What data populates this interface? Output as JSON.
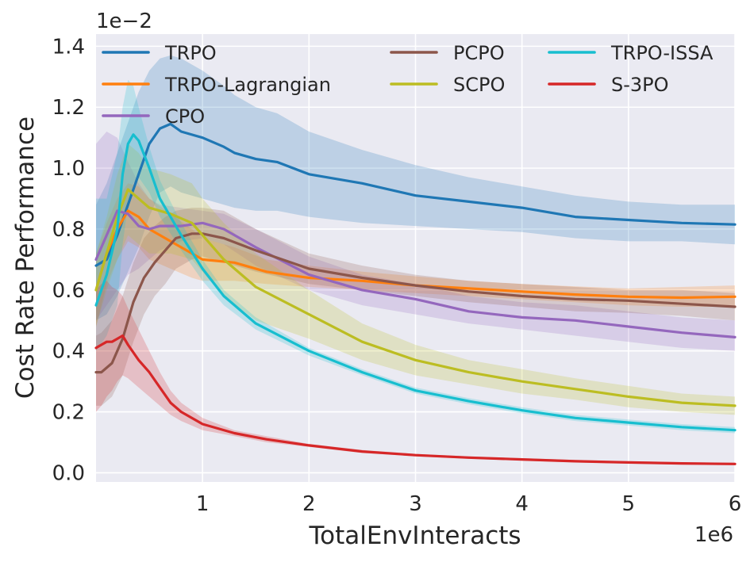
{
  "chart_data": {
    "type": "line",
    "xlabel": "TotalEnvInteracts",
    "ylabel": "Cost Rate Performance",
    "x_offset_text": "1e6",
    "y_offset_text": "1e−2",
    "xlim": [
      0.0,
      6.0
    ],
    "ylim": [
      -0.03,
      1.44
    ],
    "xticks": [
      1,
      2,
      3,
      4,
      5,
      6
    ],
    "xtick_labels": [
      "1",
      "2",
      "3",
      "4",
      "5",
      "6"
    ],
    "yticks": [
      0.0,
      0.2,
      0.4,
      0.6,
      0.8,
      1.0,
      1.2,
      1.4
    ],
    "ytick_labels": [
      "0.0",
      "0.2",
      "0.4",
      "0.6",
      "0.8",
      "1.0",
      "1.2",
      "1.4"
    ],
    "grid": true,
    "legend_position": "top",
    "series": [
      {
        "name": "TRPO",
        "color": "#1f77b4",
        "x": [
          0.0,
          0.1,
          0.2,
          0.3,
          0.4,
          0.5,
          0.6,
          0.7,
          0.8,
          1.0,
          1.2,
          1.3,
          1.5,
          1.7,
          2.0,
          2.5,
          3.0,
          3.5,
          4.0,
          4.5,
          5.0,
          5.5,
          6.0
        ],
        "y": [
          0.68,
          0.7,
          0.78,
          0.88,
          0.98,
          1.08,
          1.13,
          1.145,
          1.12,
          1.1,
          1.07,
          1.05,
          1.03,
          1.02,
          0.98,
          0.95,
          0.91,
          0.89,
          0.87,
          0.84,
          0.83,
          0.82,
          0.815
        ],
        "band_upper": [
          0.88,
          0.95,
          1.05,
          1.15,
          1.25,
          1.32,
          1.36,
          1.37,
          1.36,
          1.32,
          1.27,
          1.24,
          1.2,
          1.18,
          1.12,
          1.06,
          1.01,
          0.97,
          0.94,
          0.91,
          0.89,
          0.88,
          0.88
        ],
        "band_lower": [
          0.5,
          0.52,
          0.58,
          0.66,
          0.74,
          0.84,
          0.92,
          0.94,
          0.92,
          0.9,
          0.88,
          0.87,
          0.86,
          0.86,
          0.84,
          0.82,
          0.81,
          0.8,
          0.79,
          0.77,
          0.76,
          0.76,
          0.75
        ]
      },
      {
        "name": "TRPO-Lagrangian",
        "color": "#ff7f0e",
        "x": [
          0.0,
          0.1,
          0.2,
          0.3,
          0.4,
          0.5,
          0.7,
          0.9,
          1.0,
          1.3,
          1.6,
          2.0,
          2.5,
          3.0,
          3.5,
          4.0,
          4.5,
          5.0,
          5.5,
          6.0
        ],
        "y": [
          0.6,
          0.72,
          0.8,
          0.86,
          0.84,
          0.8,
          0.76,
          0.72,
          0.7,
          0.69,
          0.66,
          0.64,
          0.63,
          0.615,
          0.605,
          0.595,
          0.585,
          0.578,
          0.575,
          0.578
        ],
        "band_upper": [
          0.72,
          0.82,
          0.9,
          0.95,
          0.94,
          0.9,
          0.85,
          0.8,
          0.77,
          0.74,
          0.7,
          0.68,
          0.66,
          0.645,
          0.63,
          0.62,
          0.612,
          0.605,
          0.61,
          0.615
        ],
        "band_lower": [
          0.48,
          0.62,
          0.7,
          0.76,
          0.74,
          0.7,
          0.67,
          0.64,
          0.63,
          0.63,
          0.62,
          0.61,
          0.6,
          0.59,
          0.58,
          0.57,
          0.56,
          0.55,
          0.545,
          0.545
        ]
      },
      {
        "name": "CPO",
        "color": "#9467bd",
        "x": [
          0.0,
          0.1,
          0.2,
          0.3,
          0.4,
          0.5,
          0.6,
          0.8,
          1.0,
          1.2,
          1.5,
          2.0,
          2.5,
          3.0,
          3.5,
          4.0,
          4.5,
          5.0,
          5.5,
          6.0
        ],
        "y": [
          0.7,
          0.78,
          0.86,
          0.85,
          0.81,
          0.8,
          0.81,
          0.81,
          0.82,
          0.8,
          0.74,
          0.65,
          0.6,
          0.57,
          0.53,
          0.51,
          0.5,
          0.48,
          0.46,
          0.445
        ],
        "band_upper": [
          1.08,
          1.12,
          1.1,
          1.02,
          0.95,
          0.9,
          0.88,
          0.87,
          0.86,
          0.85,
          0.8,
          0.71,
          0.65,
          0.62,
          0.58,
          0.56,
          0.55,
          0.53,
          0.51,
          0.5
        ],
        "band_lower": [
          0.5,
          0.55,
          0.6,
          0.65,
          0.67,
          0.7,
          0.73,
          0.76,
          0.77,
          0.75,
          0.68,
          0.6,
          0.55,
          0.52,
          0.49,
          0.47,
          0.45,
          0.43,
          0.41,
          0.4
        ]
      },
      {
        "name": "PCPO",
        "color": "#8c564b",
        "x": [
          0.0,
          0.05,
          0.15,
          0.25,
          0.35,
          0.45,
          0.55,
          0.65,
          0.75,
          0.9,
          1.0,
          1.2,
          1.5,
          2.0,
          2.5,
          3.0,
          3.5,
          4.0,
          4.5,
          5.0,
          5.5,
          6.0
        ],
        "y": [
          0.33,
          0.33,
          0.36,
          0.44,
          0.56,
          0.64,
          0.69,
          0.73,
          0.77,
          0.785,
          0.785,
          0.77,
          0.73,
          0.67,
          0.64,
          0.615,
          0.595,
          0.58,
          0.57,
          0.565,
          0.555,
          0.545
        ],
        "band_upper": [
          0.45,
          0.46,
          0.5,
          0.58,
          0.69,
          0.77,
          0.81,
          0.84,
          0.86,
          0.87,
          0.87,
          0.86,
          0.8,
          0.72,
          0.68,
          0.65,
          0.63,
          0.62,
          0.61,
          0.6,
          0.6,
          0.59
        ],
        "band_lower": [
          0.22,
          0.22,
          0.25,
          0.32,
          0.43,
          0.52,
          0.58,
          0.62,
          0.67,
          0.7,
          0.71,
          0.69,
          0.66,
          0.62,
          0.6,
          0.58,
          0.56,
          0.545,
          0.53,
          0.525,
          0.515,
          0.5
        ]
      },
      {
        "name": "SCPO",
        "color": "#bcbd22",
        "x": [
          0.0,
          0.1,
          0.2,
          0.3,
          0.4,
          0.5,
          0.7,
          0.9,
          1.0,
          1.2,
          1.5,
          2.0,
          2.5,
          3.0,
          3.5,
          4.0,
          4.5,
          5.0,
          5.5,
          6.0
        ],
        "y": [
          0.6,
          0.72,
          0.84,
          0.93,
          0.9,
          0.87,
          0.85,
          0.82,
          0.78,
          0.7,
          0.61,
          0.52,
          0.43,
          0.37,
          0.33,
          0.3,
          0.275,
          0.25,
          0.23,
          0.22
        ],
        "band_upper": [
          0.72,
          0.84,
          0.98,
          1.08,
          1.05,
          1.0,
          0.98,
          0.95,
          0.9,
          0.82,
          0.72,
          0.6,
          0.49,
          0.42,
          0.37,
          0.34,
          0.31,
          0.285,
          0.26,
          0.25
        ],
        "band_lower": [
          0.48,
          0.6,
          0.7,
          0.78,
          0.75,
          0.72,
          0.72,
          0.7,
          0.66,
          0.58,
          0.5,
          0.44,
          0.37,
          0.32,
          0.29,
          0.26,
          0.24,
          0.215,
          0.2,
          0.19
        ]
      },
      {
        "name": "TRPO-ISSA",
        "color": "#17becf",
        "x": [
          0.0,
          0.1,
          0.2,
          0.25,
          0.3,
          0.35,
          0.4,
          0.5,
          0.6,
          0.8,
          1.0,
          1.2,
          1.5,
          2.0,
          2.5,
          3.0,
          3.5,
          4.0,
          4.5,
          5.0,
          5.5,
          6.0
        ],
        "y": [
          0.55,
          0.65,
          0.8,
          0.98,
          1.08,
          1.11,
          1.09,
          1.0,
          0.9,
          0.78,
          0.67,
          0.58,
          0.49,
          0.4,
          0.33,
          0.27,
          0.235,
          0.205,
          0.18,
          0.165,
          0.15,
          0.14
        ],
        "band_upper": [
          0.9,
          0.9,
          1.05,
          1.2,
          1.29,
          1.27,
          1.2,
          1.07,
          0.96,
          0.82,
          0.7,
          0.6,
          0.51,
          0.41,
          0.34,
          0.28,
          0.245,
          0.215,
          0.19,
          0.175,
          0.16,
          0.15
        ],
        "band_lower": [
          0.4,
          0.45,
          0.55,
          0.75,
          0.88,
          0.95,
          0.97,
          0.92,
          0.84,
          0.73,
          0.63,
          0.55,
          0.47,
          0.385,
          0.32,
          0.26,
          0.225,
          0.195,
          0.17,
          0.155,
          0.14,
          0.13
        ]
      },
      {
        "name": "S-3PO",
        "color": "#d62728",
        "x": [
          0.0,
          0.05,
          0.1,
          0.15,
          0.2,
          0.25,
          0.3,
          0.4,
          0.5,
          0.6,
          0.7,
          0.8,
          1.0,
          1.3,
          1.6,
          2.0,
          2.5,
          3.0,
          3.5,
          4.0,
          4.5,
          5.0,
          5.5,
          6.0
        ],
        "y": [
          0.41,
          0.42,
          0.43,
          0.43,
          0.44,
          0.45,
          0.42,
          0.37,
          0.33,
          0.28,
          0.23,
          0.2,
          0.16,
          0.13,
          0.11,
          0.09,
          0.07,
          0.058,
          0.05,
          0.044,
          0.038,
          0.034,
          0.031,
          0.029
        ],
        "band_upper": [
          0.6,
          0.62,
          0.63,
          0.61,
          0.6,
          0.58,
          0.54,
          0.47,
          0.4,
          0.33,
          0.27,
          0.23,
          0.18,
          0.14,
          0.12,
          0.095,
          0.075,
          0.062,
          0.054,
          0.048,
          0.042,
          0.038,
          0.035,
          0.033
        ],
        "band_lower": [
          0.2,
          0.22,
          0.25,
          0.27,
          0.3,
          0.32,
          0.31,
          0.28,
          0.25,
          0.22,
          0.19,
          0.17,
          0.14,
          0.12,
          0.1,
          0.085,
          0.065,
          0.054,
          0.046,
          0.04,
          0.034,
          0.03,
          0.027,
          0.025
        ]
      }
    ]
  }
}
